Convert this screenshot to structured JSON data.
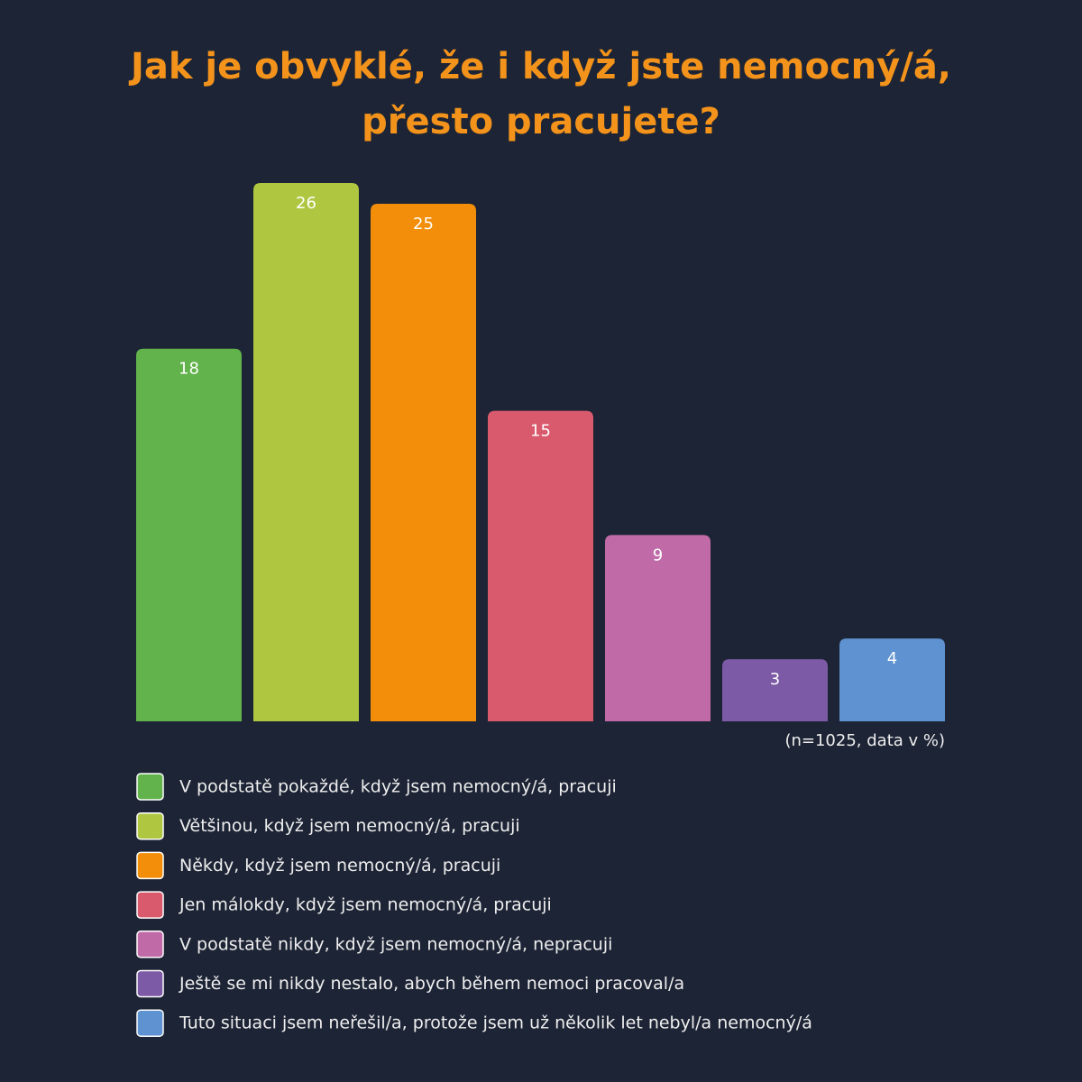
{
  "chart_data": {
    "type": "bar",
    "title": [
      "Jak je obvyklé, že i když jste nemocný/á,",
      "přesto pracujete?"
    ],
    "categories": [
      "V podstatě pokaždé, když jsem nemocný/á, pracuji",
      "Většinou, když jsem nemocný/á, pracuji",
      "Někdy, když jsem nemocný/á, pracuji",
      "Jen málokdy, když jsem nemocný/á, pracuji",
      "V podstatě nikdy, když jsem nemocný/á, nepracuji",
      "Ještě se mi nikdy nestalo, abych během nemoci pracoval/a",
      "Tuto situaci jsem neřešil/a, protože jsem už několik let nebyl/a nemocný/á"
    ],
    "values": [
      18,
      26,
      25,
      15,
      9,
      3,
      4
    ],
    "colors": [
      "#62b34c",
      "#aec640",
      "#f28e0a",
      "#d95a6d",
      "#c06ba8",
      "#7d5aa6",
      "#5e92d0"
    ],
    "ylim": [
      0,
      26
    ],
    "note": "(n=1025, data v %)"
  }
}
